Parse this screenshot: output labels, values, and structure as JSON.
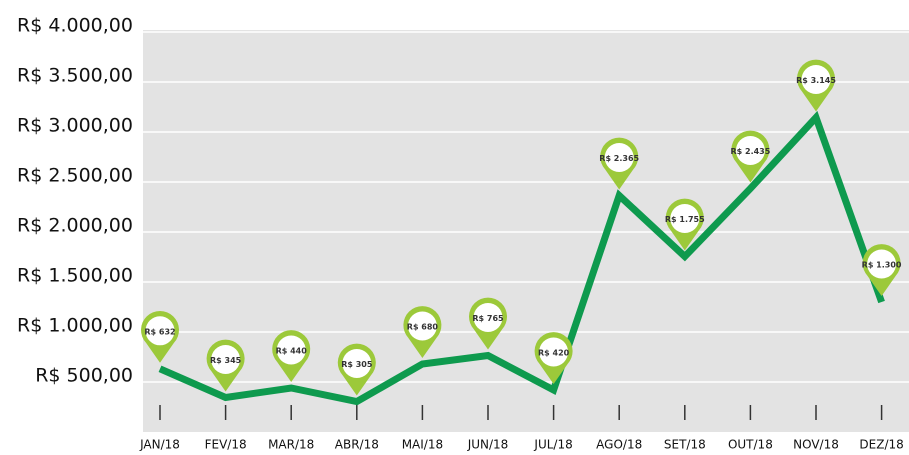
{
  "chart_data": {
    "type": "line",
    "categories": [
      "JAN/18",
      "FEV/18",
      "MAR/18",
      "ABR/18",
      "MAI/18",
      "JUN/18",
      "JUL/18",
      "AGO/18",
      "SET/18",
      "OUT/18",
      "NOV/18",
      "DEZ/18"
    ],
    "series": [
      {
        "color": "#0e9a4e",
        "marker_color": "#9cc93a",
        "values": [
          632,
          345,
          440,
          305,
          680,
          765,
          420,
          2365,
          1755,
          2435,
          3145,
          1300
        ],
        "value_labels": [
          "R$ 632",
          "R$ 345",
          "R$ 440",
          "R$ 305",
          "R$ 680",
          "R$ 765",
          "R$ 420",
          "R$ 2.365",
          "R$ 1.755",
          "R$ 2.435",
          "R$ 3.145",
          "R$ 1.300"
        ]
      }
    ],
    "ylim": [
      0,
      4000
    ],
    "yticks": [
      {
        "value": 500,
        "label": "R$ 500,00"
      },
      {
        "value": 1000,
        "label": "R$ 1.000,00"
      },
      {
        "value": 1500,
        "label": "R$ 1.500,00"
      },
      {
        "value": 2000,
        "label": "R$ 2.000,00"
      },
      {
        "value": 2500,
        "label": "R$ 2.500,00"
      },
      {
        "value": 3000,
        "label": "R$ 3.000,00"
      },
      {
        "value": 3500,
        "label": "R$ 3.500,00"
      },
      {
        "value": 4000,
        "label": "R$ 4.000,00"
      }
    ],
    "grid": true
  }
}
